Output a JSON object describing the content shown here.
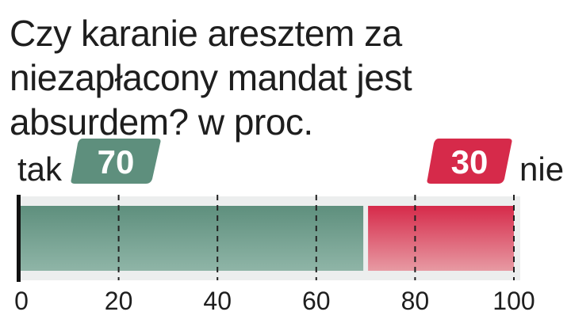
{
  "title": "Czy karanie aresztem za niezapłacony mandat jest absurdem? w proc.",
  "colors": {
    "tak": "#5e8f7d",
    "tak_light": "#8fb5a7",
    "nie": "#d62a4a",
    "nie_light": "#e79aa3",
    "track": "#eceeee",
    "grid": "#222222"
  },
  "chart_data": {
    "type": "bar",
    "orientation": "horizontal-stacked",
    "title": "Czy karanie aresztem za niezapłacony mandat jest absurdem? w proc.",
    "series": [
      {
        "name": "tak",
        "value": 70
      },
      {
        "name": "nie",
        "value": 30
      }
    ],
    "xlim": [
      0,
      100
    ],
    "ticks": [
      "0",
      "20",
      "40",
      "60",
      "80",
      "100"
    ],
    "grid": "dashed vertical",
    "legend": "labels above bar ends"
  }
}
